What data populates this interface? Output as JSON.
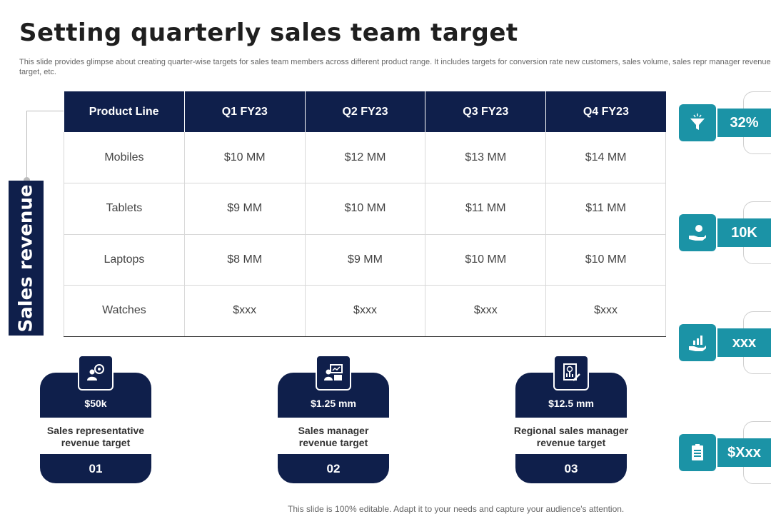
{
  "title": "Setting quarterly sales team target",
  "subtitle": "This slide provides glimpse about creating quarter-wise targets for sales team members across different product range. It includes targets for conversion rate new customers, sales volume, sales repr manager revenue target, etc.",
  "side_label": "Sales revenue",
  "table": {
    "headers": [
      "Product Line",
      "Q1 FY23",
      "Q2 FY23",
      "Q3 FY23",
      "Q4 FY23"
    ],
    "rows": [
      [
        "Mobiles",
        "$10 MM",
        "$12 MM",
        "$13 MM",
        "$14 MM"
      ],
      [
        "Tablets",
        "$9 MM",
        "$10 MM",
        "$11 MM",
        "$11 MM"
      ],
      [
        "Laptops",
        "$8 MM",
        "$9 MM",
        "$10 MM",
        "$10 MM"
      ],
      [
        "Watches",
        "$xxx",
        "$xxx",
        "$xxx",
        "$xxx"
      ]
    ]
  },
  "kpis": [
    {
      "icon": "funnel-icon",
      "value": "32%"
    },
    {
      "icon": "hand-money-icon",
      "value": "10K"
    },
    {
      "icon": "growth-chart-icon",
      "value": "xxx"
    },
    {
      "icon": "clipboard-icon",
      "value": "$Xxx"
    }
  ],
  "cards": [
    {
      "icon": "team-target-icon",
      "amount": "$50k",
      "label_line1": "Sales representative",
      "label_line2": "revenue target",
      "number": "01"
    },
    {
      "icon": "presentation-icon",
      "amount": "$1.25 mm",
      "label_line1": "Sales manager",
      "label_line2": "revenue target",
      "number": "02"
    },
    {
      "icon": "report-chart-icon",
      "amount": "$12.5 mm",
      "label_line1": "Regional sales manager",
      "label_line2": "revenue target",
      "number": "03"
    }
  ],
  "footer": "This slide is 100% editable. Adapt it to your needs and capture your audience's attention.",
  "colors": {
    "navy": "#0f1f4b",
    "teal": "#1b93a6"
  }
}
